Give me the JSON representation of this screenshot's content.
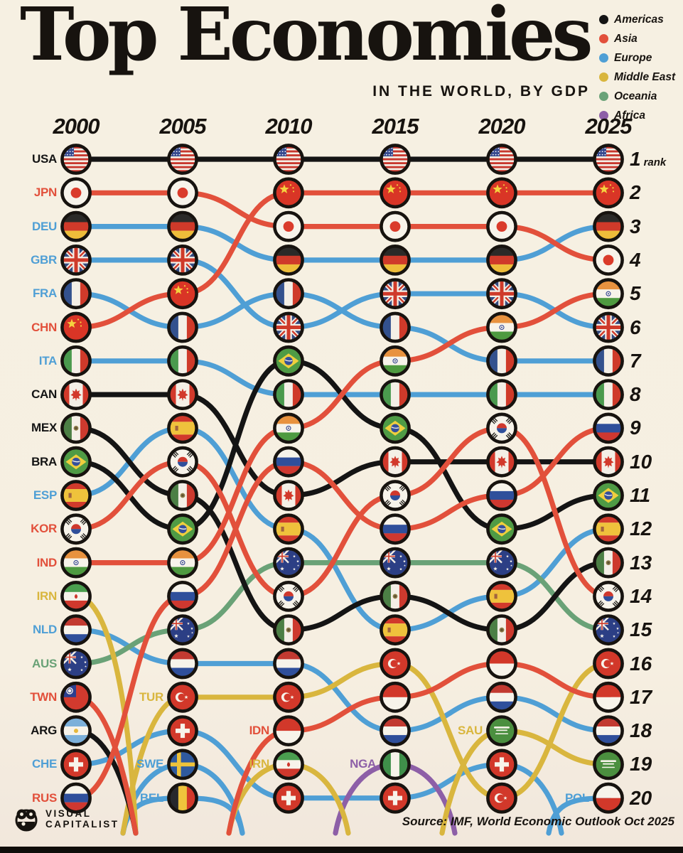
{
  "title": "Top Economies",
  "subtitle": "IN THE WORLD, BY GDP",
  "legend": {
    "items": [
      {
        "label": "Americas",
        "color": "#141414"
      },
      {
        "label": "Asia",
        "color": "#e2503b"
      },
      {
        "label": "Europe",
        "color": "#4f9fd5"
      },
      {
        "label": "Middle East",
        "color": "#d9b63e"
      },
      {
        "label": "Oceania",
        "color": "#6aa277"
      },
      {
        "label": "Africa",
        "color": "#8d5fa7"
      }
    ]
  },
  "rank_axis": {
    "suffix": "rank",
    "min": 1,
    "max": 20
  },
  "footer": {
    "brand_line1": "VISUAL",
    "brand_line2": "CAPITALIST",
    "source": "Source: IMF, World Economic Outlook Oct 2025"
  },
  "chart_data": {
    "type": "bump",
    "title": "Top Economies in the World, by GDP",
    "years": [
      "2000",
      "2005",
      "2010",
      "2015",
      "2020",
      "2025"
    ],
    "rank_range": [
      1,
      20
    ],
    "legend_position": "top-right",
    "region_colors": {
      "Americas": "#141414",
      "Asia": "#e2503b",
      "Europe": "#4f9fd5",
      "Middle East": "#d9b63e",
      "Oceania": "#6aa277",
      "Africa": "#8d5fa7"
    },
    "countries": [
      {
        "code": "NLD",
        "region": "Europe",
        "ranks": [
          15,
          16,
          16,
          18,
          17,
          18
        ]
      },
      {
        "code": "CHE",
        "region": "Europe",
        "ranks": [
          19,
          18,
          20,
          20,
          19,
          null
        ]
      },
      {
        "code": "SWE",
        "region": "Europe",
        "ranks": [
          null,
          19,
          null,
          null,
          null,
          null
        ]
      },
      {
        "code": "BEL",
        "region": "Europe",
        "ranks": [
          null,
          20,
          null,
          null,
          null,
          null
        ]
      },
      {
        "code": "POL",
        "region": "Europe",
        "ranks": [
          null,
          null,
          null,
          null,
          null,
          20
        ]
      },
      {
        "code": "ESP",
        "region": "Europe",
        "ranks": [
          11,
          9,
          12,
          15,
          14,
          12
        ]
      },
      {
        "code": "GBR",
        "region": "Europe",
        "ranks": [
          4,
          4,
          6,
          5,
          5,
          6
        ]
      },
      {
        "code": "FRA",
        "region": "Europe",
        "ranks": [
          5,
          6,
          5,
          6,
          7,
          7
        ]
      },
      {
        "code": "ITA",
        "region": "Europe",
        "ranks": [
          7,
          7,
          8,
          8,
          8,
          8
        ]
      },
      {
        "code": "DEU",
        "region": "Europe",
        "ranks": [
          3,
          3,
          4,
          4,
          4,
          3
        ]
      },
      {
        "code": "NGA",
        "region": "Africa",
        "ranks": [
          null,
          null,
          null,
          19,
          null,
          null
        ]
      },
      {
        "code": "AUS",
        "region": "Oceania",
        "ranks": [
          16,
          15,
          13,
          13,
          13,
          15
        ]
      },
      {
        "code": "TUR",
        "region": "Middle East",
        "ranks": [
          null,
          17,
          17,
          16,
          20,
          16
        ]
      },
      {
        "code": "SAU",
        "region": "Middle East",
        "ranks": [
          null,
          null,
          null,
          null,
          18,
          19
        ]
      },
      {
        "code": "IRN",
        "region": "Middle East",
        "ranks": [
          14,
          null,
          19,
          null,
          null,
          null
        ]
      },
      {
        "code": "ARG",
        "region": "Americas",
        "ranks": [
          18,
          null,
          null,
          null,
          null,
          null
        ]
      },
      {
        "code": "MEX",
        "region": "Americas",
        "ranks": [
          9,
          11,
          15,
          14,
          15,
          13
        ]
      },
      {
        "code": "BRA",
        "region": "Americas",
        "ranks": [
          10,
          12,
          7,
          9,
          12,
          11
        ]
      },
      {
        "code": "CAN",
        "region": "Americas",
        "ranks": [
          8,
          8,
          11,
          10,
          10,
          10
        ]
      },
      {
        "code": "TWN",
        "region": "Asia",
        "ranks": [
          17,
          null,
          null,
          null,
          null,
          null
        ]
      },
      {
        "code": "IDN",
        "region": "Asia",
        "ranks": [
          null,
          null,
          18,
          17,
          16,
          17
        ]
      },
      {
        "code": "KOR",
        "region": "Asia",
        "ranks": [
          12,
          10,
          14,
          11,
          9,
          14
        ]
      },
      {
        "code": "JPN",
        "region": "Asia",
        "ranks": [
          2,
          2,
          3,
          3,
          3,
          4
        ]
      },
      {
        "code": "RUS",
        "region": "Asia",
        "ranks": [
          20,
          14,
          10,
          12,
          11,
          9
        ]
      },
      {
        "code": "CHN",
        "region": "Asia",
        "ranks": [
          6,
          5,
          2,
          2,
          2,
          2
        ]
      },
      {
        "code": "IND",
        "region": "Asia",
        "ranks": [
          13,
          13,
          9,
          7,
          6,
          5
        ]
      },
      {
        "code": "USA",
        "region": "Americas",
        "ranks": [
          1,
          1,
          1,
          1,
          1,
          1
        ]
      }
    ]
  }
}
